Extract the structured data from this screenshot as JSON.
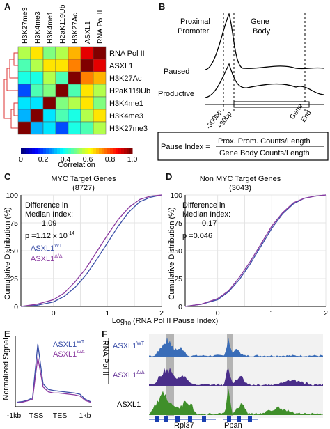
{
  "panels": {
    "A": {
      "letter": "A",
      "columns": [
        "H3K27me3",
        "H3K4me3",
        "H3K4me1",
        "H2aK119Ub",
        "H3K27Ac",
        "ASXL1",
        "RNA Pol II"
      ],
      "rows": [
        "RNA Pol II",
        "ASXL1",
        "H3K27Ac",
        "H2aK119Ub",
        "H3K4me1",
        "H3K4me3",
        "H3K27me3"
      ],
      "colorbar_ticks": [
        "0",
        "0.2",
        "0.4",
        "0.6",
        "0.8",
        "1.0"
      ],
      "colorbar_label": "Correlation"
    },
    "B": {
      "letter": "B",
      "proximal_label_1": "Proximal",
      "proximal_label_2": "Promoter",
      "gene_body_label_1": "Gene",
      "gene_body_label_2": "Body",
      "paused_label": "Paused",
      "productive_label": "Productive",
      "tick_minus300": "-300bp",
      "tick_plus30": "+30bp",
      "gene_end_1": "Gene",
      "gene_end_2": "End",
      "formula_lhs": "Pause Index =",
      "formula_num": "Prox. Prom. Counts/Length",
      "formula_den": "Gene Body Counts/Length"
    },
    "C": {
      "letter": "C",
      "title": "MYC Target Genes",
      "count": "(8727)",
      "diff_1": "Difference in",
      "diff_2": "Median Index:",
      "diff_val": "1.09",
      "pval": "p =1.12 x 10",
      "pval_exp": "-14",
      "legend_wt_base": "ASXL1",
      "legend_wt_sup": "WT",
      "legend_mut_base": "ASXL1",
      "legend_mut_sup": "Δ/Δ",
      "ylabel": "Cumulative Distribution (%)",
      "yticks": [
        "0",
        "25",
        "50",
        "75",
        "100"
      ],
      "xticks": [
        "0",
        "1",
        "2"
      ]
    },
    "D": {
      "letter": "D",
      "title": "Non MYC Target Genes",
      "count": "(3043)",
      "diff_1": "Difference in",
      "diff_2": "Median Index:",
      "diff_val": "0.17",
      "pval": "p =0.046",
      "ylabel": "Cumulative Distribution (%)",
      "yticks": [
        "0",
        "25",
        "50",
        "75",
        "100"
      ],
      "xticks": [
        "0",
        "1",
        "2"
      ]
    },
    "shared_xlabel_pre": "Log",
    "shared_xlabel_sub": "10",
    "shared_xlabel_post": " (RNA Pol II Pause Index)",
    "E": {
      "letter": "E",
      "ylabel": "Normalized Signal",
      "legend_wt_base": "ASXL1",
      "legend_wt_sup": "WT",
      "legend_mut_base": "ASXL1",
      "legend_mut_sup": "Δ/Δ",
      "xticks": [
        "-1kb",
        "TSS",
        "TES",
        "1kb"
      ]
    },
    "F": {
      "letter": "F",
      "group_label": "RNA Pol II",
      "track_wt_base": "ASXL1",
      "track_wt_sup": "WT",
      "track_mut_base": "ASXL1",
      "track_mut_sup": "Δ/Δ",
      "track_asxl1": "ASXL1",
      "gene1": "Rpl37",
      "gene2": "Ppan"
    }
  },
  "colors": {
    "wt": "#3b4fa8",
    "mut": "#8b3aa0",
    "asxl1_track": "#3f8f2a"
  },
  "chart_data": [
    {
      "type": "heatmap",
      "rows": [
        "RNA Pol II",
        "ASXL1",
        "H3K27Ac",
        "H2aK119Ub",
        "H3K4me1",
        "H3K4me3",
        "H3K27me3"
      ],
      "columns": [
        "H3K27me3",
        "H3K4me3",
        "H3K4me1",
        "H2aK119Ub",
        "H3K27Ac",
        "ASXL1",
        "RNA Pol II"
      ],
      "values": [
        [
          0.55,
          0.65,
          0.5,
          0.55,
          0.7,
          0.9,
          1.0
        ],
        [
          0.45,
          0.55,
          0.65,
          0.65,
          0.75,
          1.0,
          0.9
        ],
        [
          0.4,
          0.4,
          0.55,
          0.45,
          1.0,
          0.75,
          0.7
        ],
        [
          0.2,
          0.45,
          0.5,
          1.0,
          0.45,
          0.65,
          0.55
        ],
        [
          0.35,
          0.35,
          1.0,
          0.5,
          0.55,
          0.65,
          0.5
        ],
        [
          0.3,
          1.0,
          0.35,
          0.45,
          0.4,
          0.55,
          0.65
        ],
        [
          1.0,
          0.3,
          0.35,
          0.2,
          0.4,
          0.45,
          0.55
        ]
      ],
      "colorbar_range": [
        0,
        1
      ]
    },
    {
      "type": "line",
      "title": "MYC Target Genes",
      "ylabel": "Cumulative Distribution (%)",
      "xlim": [
        -0.6,
        2
      ],
      "ylim": [
        0,
        100
      ],
      "series": [
        {
          "name": "ASXL1 WT",
          "x": [
            -0.6,
            -0.3,
            0,
            0.2,
            0.4,
            0.6,
            0.8,
            1.0,
            1.2,
            1.4,
            1.6,
            1.8,
            2.0
          ],
          "y": [
            0,
            1,
            4,
            9,
            17,
            28,
            42,
            57,
            72,
            85,
            94,
            98,
            100
          ]
        },
        {
          "name": "ASXL1 Δ/Δ",
          "x": [
            -0.6,
            -0.3,
            0,
            0.2,
            0.4,
            0.6,
            0.8,
            1.0,
            1.2,
            1.4,
            1.6,
            1.8,
            2.0
          ],
          "y": [
            0,
            2,
            6,
            12,
            22,
            34,
            49,
            64,
            78,
            89,
            96,
            99,
            100
          ]
        }
      ]
    },
    {
      "type": "line",
      "title": "Non MYC Target Genes",
      "ylabel": "Cumulative Distribution (%)",
      "xlim": [
        -0.6,
        2
      ],
      "ylim": [
        0,
        100
      ],
      "series": [
        {
          "name": "ASXL1 WT",
          "x": [
            -0.6,
            -0.3,
            0,
            0.2,
            0.4,
            0.6,
            0.8,
            1.0,
            1.2,
            1.4,
            1.6,
            1.8,
            2.0
          ],
          "y": [
            0,
            2,
            6,
            13,
            24,
            38,
            54,
            70,
            83,
            92,
            97,
            99,
            100
          ]
        },
        {
          "name": "ASXL1 Δ/Δ",
          "x": [
            -0.6,
            -0.3,
            0,
            0.2,
            0.4,
            0.6,
            0.8,
            1.0,
            1.2,
            1.4,
            1.6,
            1.8,
            2.0
          ],
          "y": [
            0,
            2,
            7,
            14,
            26,
            40,
            56,
            72,
            84,
            93,
            97,
            99,
            100
          ]
        }
      ]
    },
    {
      "type": "line",
      "ylabel": "Normalized Signal",
      "series": [
        {
          "name": "ASXL1 WT",
          "y": [
            0.05,
            0.06,
            0.08,
            0.12,
            1.0,
            0.35,
            0.26,
            0.24,
            0.23,
            0.22,
            0.21,
            0.2,
            0.18,
            0.1,
            0.06
          ]
        },
        {
          "name": "ASXL1 Δ/Δ",
          "y": [
            0.04,
            0.05,
            0.07,
            0.1,
            0.78,
            0.3,
            0.22,
            0.2,
            0.2,
            0.19,
            0.18,
            0.17,
            0.15,
            0.08,
            0.05
          ]
        }
      ]
    }
  ]
}
